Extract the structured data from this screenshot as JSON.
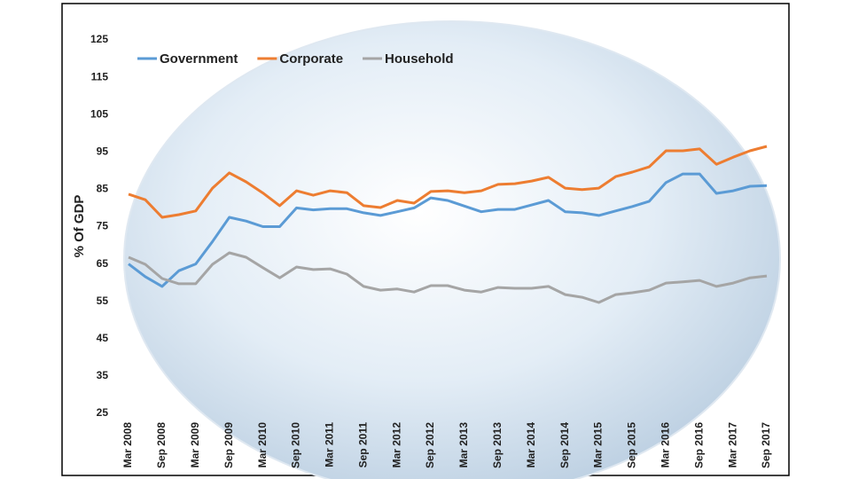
{
  "chart_data": {
    "type": "line",
    "y_label": "% Of  GDP",
    "categories": [
      "Mar 2008",
      null,
      "Sep 2008",
      null,
      "Mar 2009",
      null,
      "Sep 2009",
      null,
      "Mar 2010",
      null,
      "Sep 2010",
      null,
      "Mar 2011",
      null,
      "Sep 2011",
      null,
      "Mar 2012",
      null,
      "Sep 2012",
      null,
      "Mar 2013",
      null,
      "Sep 2013",
      null,
      "Mar 2014",
      null,
      "Sep 2014",
      null,
      "Mar 2015",
      null,
      "Sep 2015",
      null,
      "Mar 2016",
      null,
      "Sep 2016",
      null,
      "Mar 2017",
      null,
      "Sep 2017"
    ],
    "series": [
      {
        "name": "Government",
        "color": "#5b9bd5",
        "values": [
          65,
          61.6,
          59,
          63.2,
          65,
          71,
          77.5,
          76.5,
          75,
          75,
          80,
          79.5,
          79.8,
          79.8,
          78.7,
          78,
          79,
          80,
          82.7,
          82,
          80.5,
          79,
          79.6,
          79.6,
          80.8,
          82,
          79,
          78.7,
          78,
          79.2,
          80.4,
          81.8,
          86.8,
          89.1,
          89.1,
          83.9,
          84.6,
          85.8,
          86
        ]
      },
      {
        "name": "Corporate",
        "color": "#ed7d31",
        "values": [
          83.7,
          82.2,
          77.5,
          78.2,
          79.2,
          85.3,
          89.4,
          87,
          84,
          80.6,
          84.6,
          83.4,
          84.6,
          84.1,
          80.6,
          80.1,
          82,
          81.3,
          84.4,
          84.6,
          84.1,
          84.6,
          86.3,
          86.5,
          87.2,
          88.2,
          85.3,
          84.9,
          85.3,
          88.4,
          89.6,
          91,
          95.3,
          95.3,
          95.8,
          91.7,
          93.6,
          95.3,
          96.5
        ]
      },
      {
        "name": "Household",
        "color": "#a5a5a5",
        "values": [
          66.8,
          64.9,
          61.1,
          59.7,
          59.7,
          64.9,
          68,
          66.8,
          64,
          61.3,
          64.2,
          63.5,
          63.7,
          62.3,
          59,
          58,
          58.3,
          57.5,
          59.2,
          59.2,
          58,
          57.5,
          58.7,
          58.5,
          58.5,
          59,
          56.8,
          56.1,
          54.7,
          56.8,
          57.3,
          58,
          59.9,
          60.2,
          60.6,
          59,
          59.9,
          61.3,
          61.8
        ]
      }
    ],
    "ylim": [
      25,
      125
    ],
    "yticks": [
      25,
      35,
      45,
      55,
      65,
      75,
      85,
      95,
      105,
      115,
      125
    ],
    "grid": false,
    "legend": "top-left"
  }
}
